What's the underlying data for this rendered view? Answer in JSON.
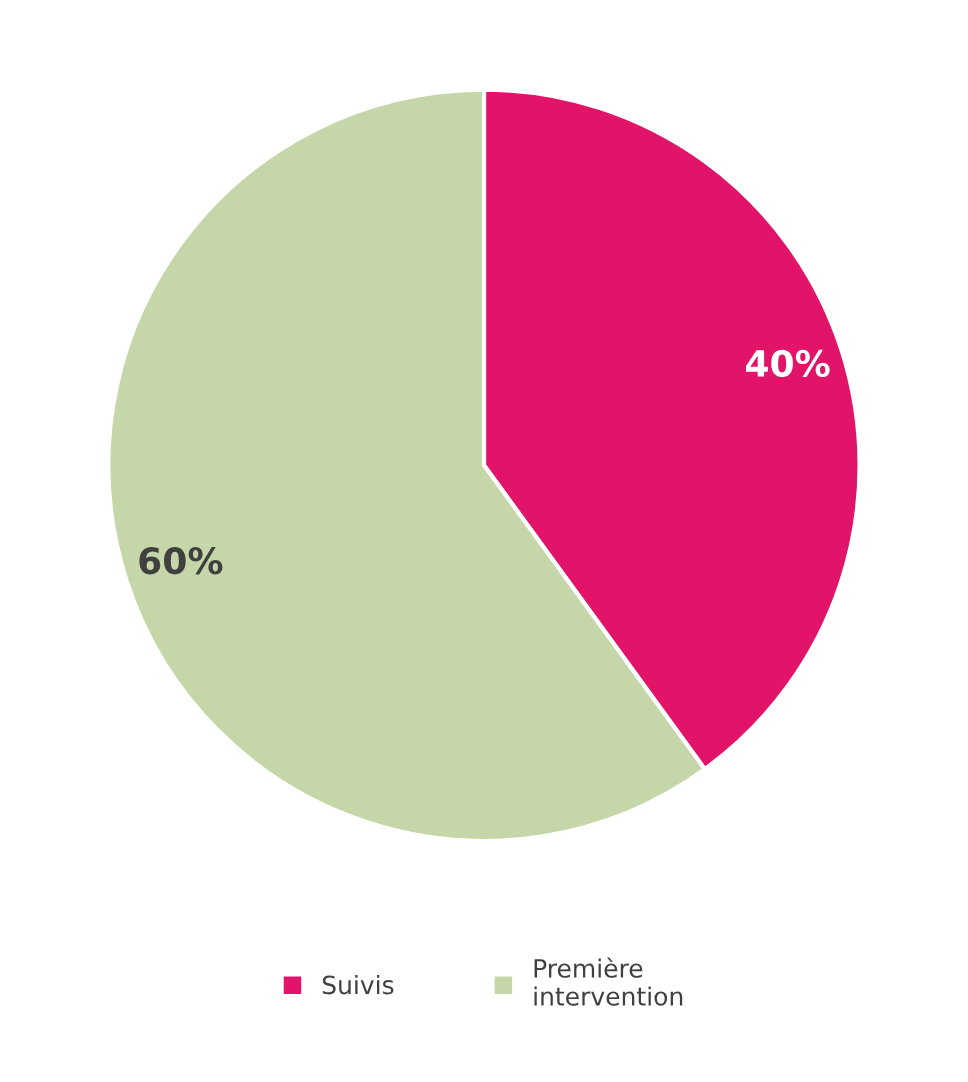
{
  "chart_data": {
    "type": "pie",
    "categories": [
      "Suivis",
      "Première intervention"
    ],
    "values": [
      40,
      60
    ],
    "colors": [
      "#e2146a",
      "#c5d6a8"
    ],
    "value_labels": [
      "40%",
      "60%"
    ],
    "legend": "bottom"
  }
}
